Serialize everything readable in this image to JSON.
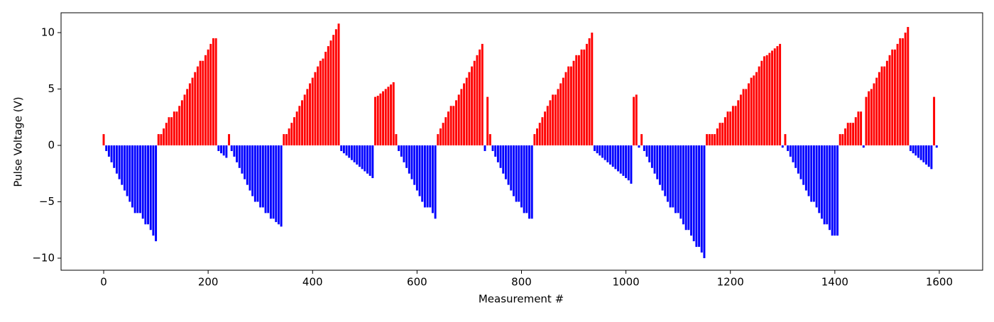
{
  "chart_data": {
    "type": "bar",
    "xlabel": "Measurement #",
    "ylabel": "Pulse Voltage (V)",
    "color_positive": "#ff0000",
    "color_negative": "#0000ff",
    "xlim": [
      -81.6,
      1683
    ],
    "ylim": [
      -11.07,
      11.76
    ],
    "xticks": [
      0,
      200,
      400,
      600,
      800,
      1000,
      1200,
      1400,
      1600
    ],
    "yticks": [
      {
        "value": -10,
        "label": "−10"
      },
      {
        "value": -5,
        "label": "−5"
      },
      0,
      5,
      10
    ],
    "x": [
      0,
      5,
      10,
      15,
      20,
      25,
      30,
      35,
      40,
      45,
      50,
      55,
      60,
      65,
      70,
      75,
      80,
      85,
      90,
      95,
      100,
      105,
      110,
      115,
      120,
      125,
      130,
      135,
      140,
      145,
      150,
      155,
      160,
      165,
      170,
      175,
      180,
      185,
      190,
      195,
      200,
      205,
      210,
      215,
      220,
      225,
      230,
      235,
      240,
      245,
      250,
      255,
      260,
      265,
      270,
      275,
      280,
      285,
      290,
      295,
      300,
      305,
      310,
      315,
      320,
      325,
      330,
      335,
      340,
      345,
      350,
      355,
      360,
      365,
      370,
      375,
      380,
      385,
      390,
      395,
      400,
      405,
      410,
      415,
      420,
      425,
      430,
      435,
      440,
      445,
      450,
      455,
      460,
      465,
      470,
      475,
      480,
      485,
      490,
      495,
      500,
      505,
      510,
      515,
      520,
      525,
      530,
      535,
      540,
      545,
      550,
      555,
      560,
      565,
      570,
      575,
      580,
      585,
      590,
      595,
      600,
      605,
      610,
      615,
      620,
      625,
      630,
      635,
      640,
      645,
      650,
      655,
      660,
      665,
      670,
      675,
      680,
      685,
      690,
      695,
      700,
      705,
      710,
      715,
      720,
      725,
      730,
      735,
      740,
      745,
      750,
      755,
      760,
      765,
      770,
      775,
      780,
      785,
      790,
      795,
      800,
      805,
      810,
      815,
      820,
      825,
      830,
      835,
      840,
      845,
      850,
      855,
      860,
      865,
      870,
      875,
      880,
      885,
      890,
      895,
      900,
      905,
      910,
      915,
      920,
      925,
      930,
      935,
      940,
      945,
      950,
      955,
      960,
      965,
      970,
      975,
      980,
      985,
      990,
      995,
      1000,
      1005,
      1010,
      1015,
      1020,
      1025,
      1030,
      1035,
      1040,
      1045,
      1050,
      1055,
      1060,
      1065,
      1070,
      1075,
      1080,
      1085,
      1090,
      1095,
      1100,
      1105,
      1110,
      1115,
      1120,
      1125,
      1130,
      1135,
      1140,
      1145,
      1150,
      1155,
      1160,
      1165,
      1170,
      1175,
      1180,
      1185,
      1190,
      1195,
      1200,
      1205,
      1210,
      1215,
      1220,
      1225,
      1230,
      1235,
      1240,
      1245,
      1250,
      1255,
      1260,
      1265,
      1270,
      1275,
      1280,
      1285,
      1290,
      1295,
      1300,
      1305,
      1310,
      1315,
      1320,
      1325,
      1330,
      1335,
      1340,
      1345,
      1350,
      1355,
      1360,
      1365,
      1370,
      1375,
      1380,
      1385,
      1390,
      1395,
      1400,
      1405,
      1410,
      1415,
      1420,
      1425,
      1430,
      1435,
      1440,
      1445,
      1450,
      1455,
      1460,
      1465,
      1470,
      1475,
      1480,
      1485,
      1490,
      1495,
      1500,
      1505,
      1510,
      1515,
      1520,
      1525,
      1530,
      1535,
      1540,
      1545,
      1550,
      1555,
      1560,
      1565,
      1570,
      1575,
      1580,
      1585,
      1590,
      1595
    ],
    "values": [
      1.0,
      -0.5,
      -1.0,
      -1.5,
      -2.0,
      -2.5,
      -3.0,
      -3.5,
      -4.0,
      -4.5,
      -5.0,
      -5.5,
      -6.0,
      -6.0,
      -6.0,
      -6.5,
      -7.0,
      -7.0,
      -7.5,
      -8.0,
      -8.5,
      1.0,
      1.0,
      1.5,
      2.0,
      2.5,
      2.5,
      3.0,
      3.0,
      3.5,
      4.0,
      4.5,
      5.0,
      5.5,
      6.0,
      6.5,
      7.0,
      7.5,
      7.5,
      8.0,
      8.5,
      9.0,
      9.5,
      9.5,
      -0.5,
      -0.7,
      -0.9,
      -1.1,
      1.0,
      -0.5,
      -1.0,
      -1.5,
      -2.0,
      -2.5,
      -3.0,
      -3.5,
      -4.0,
      -4.5,
      -5.0,
      -5.0,
      -5.5,
      -5.5,
      -6.0,
      -6.0,
      -6.5,
      -6.5,
      -6.8,
      -7.0,
      -7.2,
      1.0,
      1.0,
      1.5,
      2.0,
      2.5,
      3.0,
      3.5,
      4.0,
      4.5,
      5.0,
      5.5,
      6.0,
      6.5,
      7.0,
      7.5,
      7.7,
      8.3,
      8.8,
      9.3,
      9.8,
      10.3,
      10.8,
      -0.5,
      -0.7,
      -0.9,
      -1.1,
      -1.3,
      -1.5,
      -1.7,
      -1.9,
      -2.1,
      -2.3,
      -2.5,
      -2.7,
      -2.9,
      4.3,
      4.4,
      4.6,
      4.8,
      5.0,
      5.2,
      5.4,
      5.6,
      1.0,
      -0.5,
      -1.0,
      -1.5,
      -2.0,
      -2.5,
      -3.0,
      -3.5,
      -4.0,
      -4.5,
      -5.0,
      -5.5,
      -5.5,
      -5.5,
      -6.0,
      -6.5,
      1.0,
      1.5,
      2.0,
      2.5,
      3.0,
      3.5,
      3.5,
      4.0,
      4.5,
      5.0,
      5.5,
      6.0,
      6.5,
      7.0,
      7.5,
      8.0,
      8.5,
      9.0,
      -0.5,
      4.3,
      1.0,
      -0.5,
      -1.0,
      -1.5,
      -2.0,
      -2.5,
      -3.0,
      -3.5,
      -4.0,
      -4.5,
      -5.0,
      -5.0,
      -5.5,
      -6.0,
      -6.0,
      -6.5,
      -6.5,
      1.0,
      1.5,
      2.0,
      2.5,
      3.0,
      3.5,
      4.0,
      4.5,
      4.5,
      5.0,
      5.5,
      6.0,
      6.5,
      7.0,
      7.0,
      7.5,
      8.0,
      8.0,
      8.5,
      8.5,
      9.0,
      9.5,
      10.0,
      -0.5,
      -0.7,
      -0.9,
      -1.1,
      -1.3,
      -1.5,
      -1.7,
      -1.9,
      -2.1,
      -2.3,
      -2.5,
      -2.7,
      -2.9,
      -3.1,
      -3.4,
      4.3,
      4.5,
      -0.2,
      1.0,
      -0.5,
      -1.0,
      -1.5,
      -2.0,
      -2.5,
      -3.0,
      -3.5,
      -4.0,
      -4.5,
      -5.0,
      -5.5,
      -5.5,
      -6.0,
      -6.0,
      -6.5,
      -7.0,
      -7.5,
      -7.5,
      -8.0,
      -8.5,
      -9.0,
      -9.0,
      -9.5,
      -10.0,
      1.0,
      1.0,
      1.0,
      1.0,
      1.5,
      2.0,
      2.0,
      2.5,
      3.0,
      3.0,
      3.5,
      3.5,
      4.0,
      4.5,
      5.0,
      5.0,
      5.5,
      6.0,
      6.2,
      6.5,
      7.0,
      7.5,
      7.9,
      8.0,
      8.2,
      8.4,
      8.6,
      8.8,
      9.0,
      -0.2,
      1.0,
      -0.5,
      -1.0,
      -1.5,
      -2.0,
      -2.5,
      -3.0,
      -3.5,
      -4.0,
      -4.5,
      -5.0,
      -5.0,
      -5.5,
      -6.0,
      -6.5,
      -7.0,
      -7.0,
      -7.5,
      -8.0,
      -8.0,
      -8.0,
      1.0,
      1.0,
      1.5,
      2.0,
      2.0,
      2.0,
      2.5,
      3.0,
      3.0,
      -0.2,
      4.3,
      4.8,
      5.0,
      5.5,
      6.0,
      6.5,
      7.0,
      7.0,
      7.5,
      8.0,
      8.5,
      8.5,
      9.0,
      9.5,
      9.5,
      10.0,
      10.5,
      -0.5,
      -0.7,
      -0.9,
      -1.1,
      -1.3,
      -1.5,
      -1.7,
      -1.9,
      -2.1,
      4.3,
      -0.2
    ]
  }
}
